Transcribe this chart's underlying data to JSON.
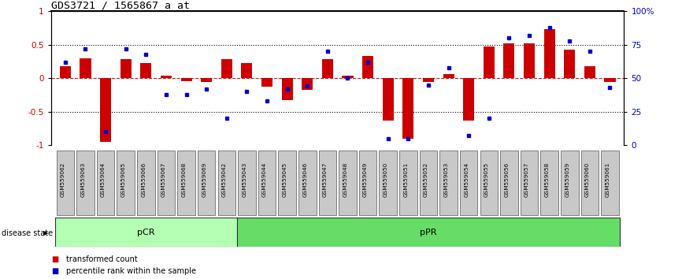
{
  "title": "GDS3721 / 1565867_a_at",
  "samples": [
    "GSM559062",
    "GSM559063",
    "GSM559064",
    "GSM559065",
    "GSM559066",
    "GSM559067",
    "GSM559068",
    "GSM559069",
    "GSM559042",
    "GSM559043",
    "GSM559044",
    "GSM559045",
    "GSM559046",
    "GSM559047",
    "GSM559048",
    "GSM559049",
    "GSM559050",
    "GSM559051",
    "GSM559052",
    "GSM559053",
    "GSM559054",
    "GSM559055",
    "GSM559056",
    "GSM559057",
    "GSM559058",
    "GSM559059",
    "GSM559060",
    "GSM559061"
  ],
  "bar_values": [
    0.18,
    0.3,
    -0.95,
    0.28,
    0.22,
    0.04,
    -0.04,
    -0.06,
    0.28,
    0.23,
    -0.13,
    -0.33,
    -0.18,
    0.28,
    0.04,
    0.33,
    -0.63,
    -0.91,
    -0.06,
    0.06,
    -0.63,
    0.47,
    0.52,
    0.52,
    0.73,
    0.42,
    0.18,
    -0.06
  ],
  "dot_values_pct": [
    62,
    72,
    10,
    72,
    68,
    38,
    38,
    42,
    20,
    40,
    33,
    42,
    44,
    70,
    50,
    62,
    5,
    5,
    45,
    58,
    7,
    20,
    80,
    82,
    88,
    78,
    70,
    43
  ],
  "pCR_count": 9,
  "pPR_count": 19,
  "bar_color": "#cc0000",
  "dot_color": "#0000cc",
  "pCR_color": "#b3ffb3",
  "pPR_color": "#66dd66",
  "ylim": [
    -1,
    1
  ],
  "yticks": [
    -1,
    -0.5,
    0,
    0.5,
    1
  ],
  "right_yticks": [
    0,
    25,
    50,
    75,
    100
  ],
  "dotted_lines": [
    -0.5,
    0.5
  ],
  "bar_width": 0.55,
  "legend_red": "transformed count",
  "legend_blue": "percentile rank within the sample",
  "disease_state_label": "disease state"
}
